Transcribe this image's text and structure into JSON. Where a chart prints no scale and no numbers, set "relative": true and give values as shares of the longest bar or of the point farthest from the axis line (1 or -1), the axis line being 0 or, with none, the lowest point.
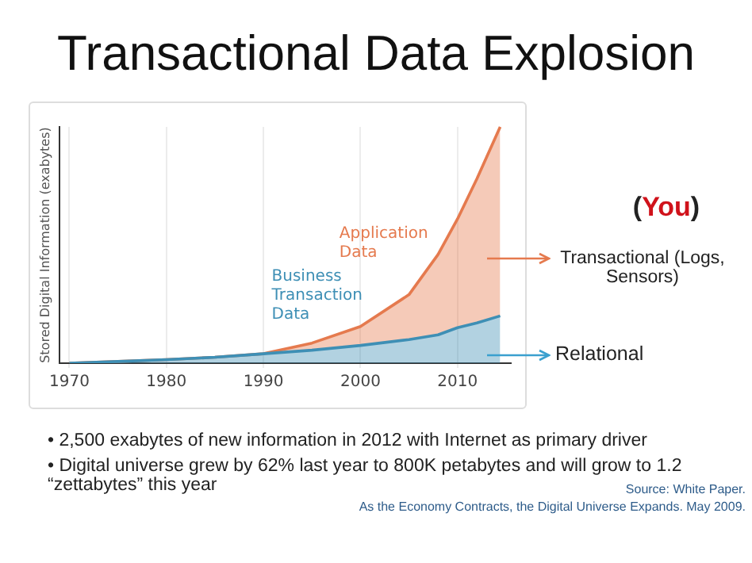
{
  "chart_data": {
    "type": "area",
    "title": "Transactional Data Explosion",
    "ylabel": "Stored Digital Information (exabytes)",
    "relative": true,
    "stacked": true,
    "grid": "x",
    "legend": false,
    "marker": "none",
    "x": [
      1970,
      1975,
      1980,
      1985,
      1990,
      1995,
      2000,
      2005,
      2008,
      2010,
      2012,
      2014.4
    ],
    "xlim": [
      1969,
      2015.5
    ],
    "xticks": [
      1970,
      1980,
      1990,
      2000,
      2010
    ],
    "series": [
      {
        "name": "Business Transaction Data",
        "color": "#3e8fb5",
        "values": [
          0,
          0.007,
          0.015,
          0.025,
          0.04,
          0.055,
          0.075,
          0.1,
          0.12,
          0.15,
          0.17,
          0.2
        ]
      },
      {
        "name": "Application Data",
        "color": "#e57a4e",
        "values": [
          0,
          0,
          0,
          0,
          0,
          0.03,
          0.08,
          0.19,
          0.34,
          0.46,
          0.61,
          0.8
        ]
      }
    ],
    "annotations": [
      "(You)",
      "Transactional (Logs, Sensors)",
      "Relational",
      "• 2,500 exabytes of new information in 2012 with Internet as primary driver",
      "• Digital universe grew by 62% last year to 800K petabytes and will grow to 1.2 “zettabytes” this year",
      "Source: White Paper.",
      "As the Economy Contracts, the Digital Universe Expands. May 2009."
    ]
  }
}
